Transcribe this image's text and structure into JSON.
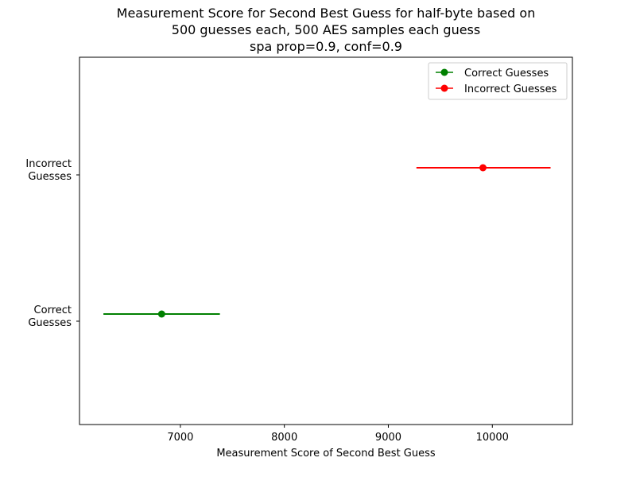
{
  "chart_data": {
    "type": "scatter",
    "title_lines": [
      "Measurement Score for Second Best Guess for half-byte based on",
      "500 guesses each, 500 AES samples each guess",
      "spa prop=0.9, conf=0.9"
    ],
    "xlabel": "Measurement Score of Second Best Guess",
    "ylabel": "",
    "xlim": [
      6030,
      10770
    ],
    "x_ticks": [
      7000,
      8000,
      9000,
      10000
    ],
    "categories": [
      "Correct\nGuesses",
      "Incorrect\nGuesses"
    ],
    "grid": false,
    "legend_placement": "top-right",
    "series": [
      {
        "name": "Correct Guesses",
        "category_index": 0,
        "value": 6820,
        "err_low": 6260,
        "err_high": 7380,
        "color": "#008000"
      },
      {
        "name": "Incorrect Guesses",
        "category_index": 1,
        "value": 9910,
        "err_low": 9270,
        "err_high": 10560,
        "color": "#ff0000"
      }
    ]
  }
}
